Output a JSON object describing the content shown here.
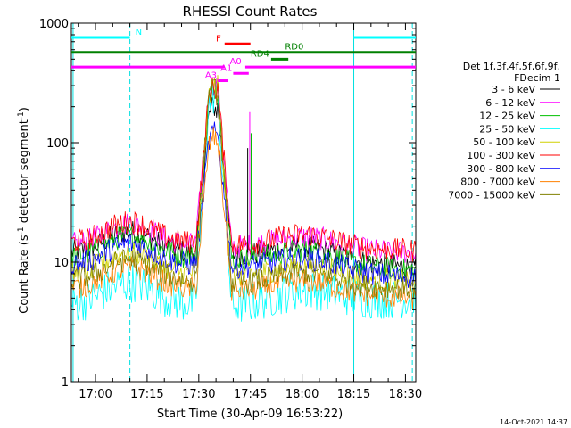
{
  "chart_data": {
    "type": "line",
    "title": "RHESSI Count Rates",
    "xlabel": "Start Time (30-Apr-09 16:53:22)",
    "ylabel_main": "Count Rate (s",
    "ylabel_sup1": "-1",
    "ylabel_mid": " detector segment",
    "ylabel_sup2": "-1",
    "ylabel_end": ")",
    "y_scale": "log",
    "ylim": [
      1,
      1000
    ],
    "x_range_minutes_after_1653": [
      0,
      100
    ],
    "x_ticks": [
      {
        "label": "17:00",
        "minute": 7
      },
      {
        "label": "17:15",
        "minute": 22
      },
      {
        "label": "17:30",
        "minute": 37
      },
      {
        "label": "17:45",
        "minute": 52
      },
      {
        "label": "18:00",
        "minute": 67
      },
      {
        "label": "18:15",
        "minute": 82
      },
      {
        "label": "18:30",
        "minute": 97
      }
    ],
    "y_ticks": [
      {
        "label": "1",
        "value": 1
      },
      {
        "label": "10",
        "value": 10
      },
      {
        "label": "100",
        "value": 100
      },
      {
        "label": "1000",
        "value": 1000
      }
    ],
    "legend": {
      "header1": "Det 1f,3f,4f,5f,6f,9f,",
      "header2": "FDecim 1",
      "placement": "right"
    },
    "series": [
      {
        "name": "3 - 6 keV",
        "color": "#000000",
        "base": 12,
        "peak": 200,
        "end": 9
      },
      {
        "name": "6 - 12 keV",
        "color": "#ff00ff",
        "base": 14,
        "peak": 310,
        "end": 12
      },
      {
        "name": "12 - 25 keV",
        "color": "#00c000",
        "base": 11,
        "peak": 290,
        "end": 8.5
      },
      {
        "name": "25 - 50 keV",
        "color": "#00ffff",
        "base": 4.5,
        "peak": 250,
        "end": 5
      },
      {
        "name": "50 - 100 keV",
        "color": "#d0d000",
        "base": 8,
        "peak": 300,
        "end": 7
      },
      {
        "name": "100 - 300 keV",
        "color": "#ff0000",
        "base": 14.5,
        "peak": 290,
        "end": 12.5
      },
      {
        "name": "300 - 800 keV",
        "color": "#0000ff",
        "base": 9.5,
        "peak": 120,
        "end": 7.5
      },
      {
        "name": "800 - 7000 keV",
        "color": "#ff8000",
        "base": 6,
        "peak": 110,
        "end": 5
      },
      {
        "name": "7000 - 15000 keV",
        "color": "#808000",
        "base": 7,
        "peak": 280,
        "end": 6
      }
    ],
    "flag_bars": [
      {
        "label": "N",
        "color": "#00ffff",
        "segments": [
          [
            0,
            17
          ],
          [
            82,
            100
          ]
        ],
        "value": 760
      },
      {
        "label": "F",
        "color": "#ff0000",
        "segments": [
          [
            44.5,
            52
          ]
        ],
        "value": 670
      },
      {
        "label": "RD0",
        "color": "#008000",
        "segments": [
          [
            0,
            100
          ]
        ],
        "value": 570
      },
      {
        "label": "RD4",
        "color": "#008000",
        "segments": [
          [
            58,
            63
          ]
        ],
        "value": 500
      },
      {
        "label": "A0",
        "color": "#ff00ff",
        "segments": [
          [
            0,
            44.5
          ],
          [
            50.5,
            100
          ]
        ],
        "value": 430
      },
      {
        "label": "A1",
        "color": "#ff00ff",
        "segments": [
          [
            47,
            51.5
          ]
        ],
        "value": 380
      },
      {
        "label": "A3",
        "color": "#ff00ff",
        "segments": [
          [
            42.5,
            45.5
          ]
        ],
        "value": 330
      }
    ],
    "vlines_solid": [
      0.5,
      82
    ],
    "vlines_dashed": [
      17,
      99
    ]
  },
  "footer": {
    "date": "14-Oct-2021 14:37"
  }
}
